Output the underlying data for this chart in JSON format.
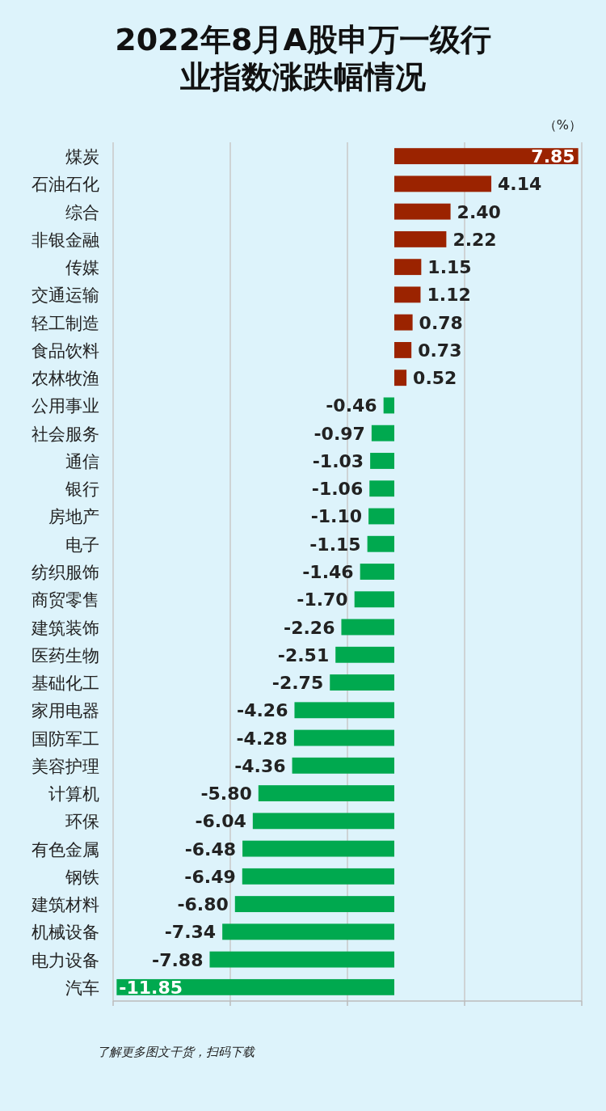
{
  "chart_data": {
    "type": "bar",
    "orientation": "horizontal",
    "title": "2022年8月A股申万一级行业指数涨跌幅情况",
    "categories": [
      "煤炭",
      "石油石化",
      "综合",
      "非银金融",
      "传媒",
      "交通运输",
      "轻工制造",
      "食品饮料",
      "农林牧渔",
      "公用事业",
      "社会服务",
      "通信",
      "银行",
      "房地产",
      "电子",
      "纺织服饰",
      "商贸零售",
      "建筑装饰",
      "医药生物",
      "基础化工",
      "家用电器",
      "国防军工",
      "美容护理",
      "计算机",
      "环保",
      "有色金属",
      "钢铁",
      "建筑材料",
      "机械设备",
      "电力设备",
      "汽车"
    ],
    "values": [
      7.85,
      4.14,
      2.4,
      2.22,
      1.15,
      1.12,
      0.78,
      0.73,
      0.52,
      -0.46,
      -0.97,
      -1.03,
      -1.06,
      -1.1,
      -1.15,
      -1.46,
      -1.7,
      -2.26,
      -2.51,
      -2.75,
      -4.26,
      -4.28,
      -4.36,
      -5.8,
      -6.04,
      -6.48,
      -6.49,
      -6.8,
      -7.34,
      -7.88,
      -11.85
    ],
    "value_labels": [
      "7.85",
      "4.14",
      "2.40",
      "2.22",
      "1.15",
      "1.12",
      "0.78",
      "0.73",
      "0.52",
      "-0.46",
      "-0.97",
      "-1.03",
      "-1.06",
      "-1.10",
      "-1.15",
      "-1.46",
      "-1.70",
      "-2.26",
      "-2.51",
      "-2.75",
      "-4.26",
      "-4.28",
      "-4.36",
      "-5.80",
      "-6.04",
      "-6.48",
      "-6.49",
      "-6.80",
      "-7.34",
      "-7.88",
      "-11.85"
    ],
    "colors": [
      "#9b2300",
      "#9b2300",
      "#9b2300",
      "#9b2300",
      "#9b2300",
      "#9b2300",
      "#9b2300",
      "#9b2300",
      "#9b2300",
      "#00a94f",
      "#00a94f",
      "#00a94f",
      "#00a94f",
      "#00a94f",
      "#00a94f",
      "#00a94f",
      "#00a94f",
      "#00a94f",
      "#00a94f",
      "#00a94f",
      "#00a94f",
      "#00a94f",
      "#00a94f",
      "#00a94f",
      "#00a94f",
      "#00a94f",
      "#00a94f",
      "#00a94f",
      "#00a94f",
      "#00a94f",
      "#00a94f"
    ],
    "xlim": [
      -12,
      8
    ],
    "xticks": [
      {
        "value": -12,
        "label": null
      },
      {
        "value": -7,
        "label": null
      },
      {
        "value": -2,
        "label": null
      },
      {
        "value": 3,
        "label": null
      },
      {
        "value": 8,
        "label": null
      }
    ],
    "grid": "x",
    "tick_labels": "y",
    "annotations": [
      "（%）",
      "了解更多图文干货，扫码下载"
    ]
  }
}
